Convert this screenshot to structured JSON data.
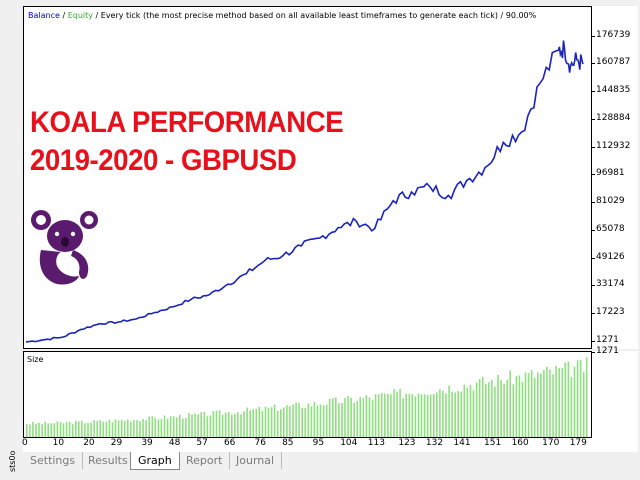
{
  "side_label": "sts0o",
  "legend": {
    "balance": "Balance",
    "sep1": " / ",
    "equity": "Equity",
    "rest": " / Every tick (the most precise method based on all available least timeframes to generate each tick) / 90.00%"
  },
  "promo": {
    "line1": "KOALA PERFORMANCE",
    "line2": "2019-2020 - GBPUSD"
  },
  "lower_pane_label": "Size",
  "lower_pane_bottom_label": "1271",
  "tabs": [
    {
      "label": "Settings",
      "active": false
    },
    {
      "label": "Results",
      "active": false
    },
    {
      "label": "Graph",
      "active": true
    },
    {
      "label": "Report",
      "active": false
    },
    {
      "label": "Journal",
      "active": false
    }
  ],
  "colors": {
    "balance_line": "#1a24b8",
    "size_bars": "#8ee07f",
    "promo_text": "#e8101a",
    "logo": "#5a1a6e"
  },
  "chart_data": {
    "type": "line",
    "series": [
      {
        "name": "Balance",
        "x": [
          0,
          6,
          12,
          18,
          24,
          30,
          36,
          42,
          48,
          54,
          60,
          66,
          72,
          78,
          84,
          90,
          96,
          102,
          108,
          114,
          120,
          126,
          132,
          138,
          144,
          150,
          156,
          162,
          168,
          174,
          176,
          178,
          180,
          182
        ],
        "values": [
          1300,
          2600,
          4100,
          8500,
          11800,
          12700,
          14500,
          18200,
          21500,
          25800,
          28500,
          34500,
          40500,
          48000,
          51000,
          56500,
          61000,
          67000,
          70500,
          66500,
          82500,
          87500,
          90500,
          85500,
          94000,
          101500,
          116000,
          122000,
          150000,
          169000,
          170000,
          160000,
          163500,
          161000
        ]
      }
    ],
    "ylim": [
      1271,
      180000
    ],
    "yticks": [
      "176739",
      "160787",
      "144835",
      "128884",
      "112932",
      "96981",
      "81029",
      "65078",
      "49126",
      "33174",
      "17223",
      "1271"
    ],
    "xticks": [
      "0",
      "10",
      "20",
      "29",
      "39",
      "48",
      "57",
      "66",
      "76",
      "85",
      "95",
      "104",
      "113",
      "123",
      "132",
      "141",
      "151",
      "160",
      "170",
      "179"
    ],
    "xlim": [
      0,
      184
    ],
    "size_series": {
      "name": "Size",
      "trend": [
        0.18,
        0.95
      ]
    }
  }
}
